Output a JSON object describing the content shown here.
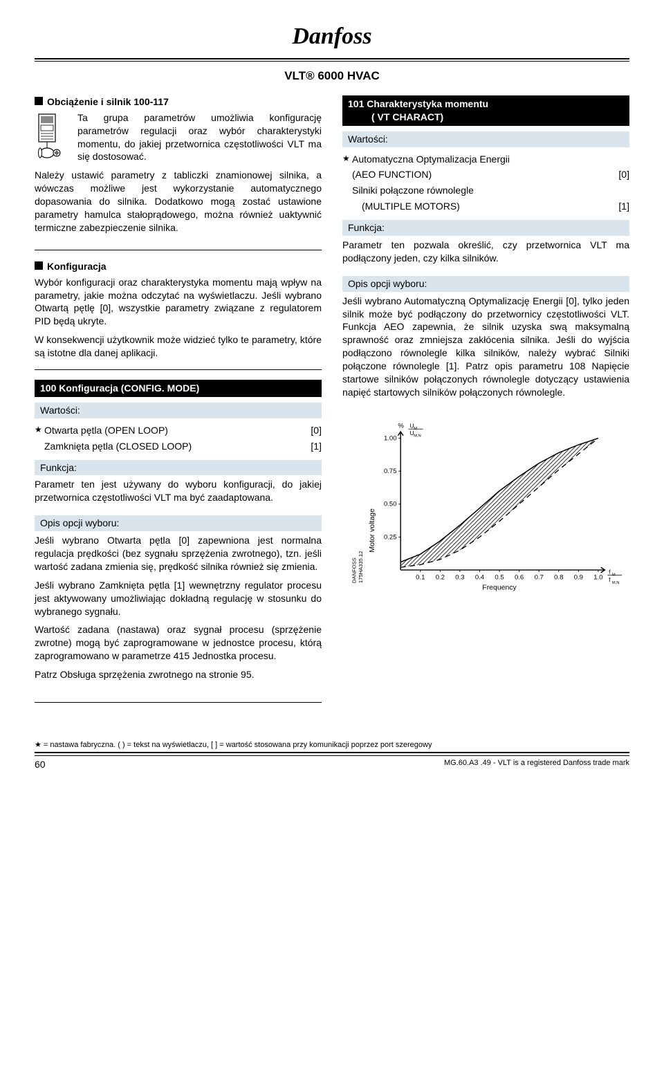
{
  "header": {
    "brand": "Danfoss",
    "product": "VLT® 6000 HVAC"
  },
  "left": {
    "sec1": {
      "title": "Obciążenie i silnik 100-117",
      "p1": "Ta grupa parametrów umożliwia konfigurację parametrów regulacji oraz wybór charakterystyki momentu, do jakiej przetwornica częstotliwości VLT ma się dostosować.",
      "p2": "Należy ustawić parametry z tabliczki znamionowej silnika, a wówczas możliwe jest wykorzystanie automatycznego dopasowania do silnika. Dodatkowo mogą zostać ustawione parametry hamulca stałoprądowego, można również uaktywnić termiczne zabezpieczenie silnika."
    },
    "sec2": {
      "title": "Konfiguracja",
      "p1": "Wybór konfiguracji oraz charakterystyka momentu mają wpływ na parametry, jakie można odczytać na wyświetlaczu. Jeśli wybrano Otwartą pętlę [0], wszystkie parametry związane z regulatorem PID będą ukryte.",
      "p2": "W konsekwencji użytkownik może widzieć tylko te parametry, które są istotne dla danej aplikacji."
    },
    "param100": {
      "header": "100  Konfiguracja (CONFIG. MODE)",
      "wartosci": "Wartości:",
      "opt0_label": "Otwarta pętla (OPEN LOOP)",
      "opt0_val": "[0]",
      "opt1_label": "Zamknięta pętla (CLOSED LOOP)",
      "opt1_val": "[1]",
      "funkcja_h": "Funkcja:",
      "funkcja_body": "Parametr ten jest używany do wyboru konfiguracji, do jakiej przetwornica częstotliwości VLT ma być zaadaptowana.",
      "opis_h": "Opis opcji wyboru:",
      "opis_p1": "Jeśli wybrano Otwarta pętla [0] zapewniona jest normalna regulacja prędkości (bez sygnału sprzężenia zwrotnego), tzn. jeśli wartość zadana zmienia się, prędkość silnika również się zmienia.",
      "opis_p2": "Jeśli wybrano Zamknięta pętla [1] wewnętrzny regulator procesu jest aktywowany umożliwiając dokładną regulację w stosunku do wybranego sygnału.",
      "opis_p3": "Wartość zadana (nastawa) oraz sygnał procesu (sprzężenie zwrotne) mogą być zaprogramowane w jednostce procesu, którą zaprogramowano w parametrze 415 Jednostka procesu.",
      "opis_p4": "Patrz Obsługa sprzężenia zwrotnego na stronie 95."
    }
  },
  "right": {
    "param101": {
      "header_line1": "101  Charakterystyka momentu",
      "header_line2": "( VT CHARACT)",
      "wartosci": "Wartości:",
      "opt0_l1": "Automatyczna Optymalizacja Energii",
      "opt0_l2": "(AEO FUNCTION)",
      "opt0_val": "[0]",
      "opt1_l1": "Silniki połączone równolegle",
      "opt1_l2": "(MULTIPLE MOTORS)",
      "opt1_val": "[1]",
      "funkcja_h": "Funkcja:",
      "funkcja_body": "Parametr ten pozwala określić, czy przetwornica VLT ma podłączony jeden, czy kilka silników.",
      "opis_h": "Opis opcji wyboru:",
      "opis_body": "Jeśli wybrano Automatyczną Optymalizację Energii [0], tylko jeden silnik może być podłączony do przetwornicy częstotliwości VLT. Funkcja AEO zapewnia, że silnik uzyska swą maksymalną sprawność oraz zmniejsza zakłócenia silnika. Jeśli do wyjścia podłączono równolegle kilka silników, należy wybrać Silniki połączone równolegle [1]. Patrz opis parametru 108 Napięcie startowe silników połączonych równolegle dotyczący ustawienia napięć startowych silników połączonych równolegle."
    },
    "chart": {
      "y_label": "Motor voltage",
      "y_top_label": "UM / UM,N",
      "x_label": "Frequency",
      "x_right_label": "fM / fM,N",
      "percent": "%",
      "y_ticks": [
        "1.00",
        "0.75",
        "0.50",
        "0.25"
      ],
      "x_ticks": [
        "0.1",
        "0.2",
        "0.3",
        "0.4",
        "0.5",
        "0.6",
        "0.7",
        "0.8",
        "0.9",
        "1.0"
      ],
      "side_label": "DANFOSS\n175HA335.12",
      "curve_upper": [
        [
          0,
          0.06
        ],
        [
          0.1,
          0.12
        ],
        [
          0.2,
          0.22
        ],
        [
          0.3,
          0.34
        ],
        [
          0.4,
          0.47
        ],
        [
          0.5,
          0.6
        ],
        [
          0.6,
          0.71
        ],
        [
          0.7,
          0.81
        ],
        [
          0.8,
          0.89
        ],
        [
          0.9,
          0.95
        ],
        [
          1.0,
          1.0
        ]
      ],
      "curve_lower": [
        [
          0,
          0.02
        ],
        [
          0.1,
          0.04
        ],
        [
          0.2,
          0.08
        ],
        [
          0.3,
          0.15
        ],
        [
          0.4,
          0.25
        ],
        [
          0.5,
          0.37
        ],
        [
          0.6,
          0.5
        ],
        [
          0.7,
          0.63
        ],
        [
          0.8,
          0.76
        ],
        [
          0.9,
          0.88
        ],
        [
          1.0,
          1.0
        ]
      ],
      "bg": "#ffffff",
      "axis_color": "#000000",
      "hatch_color": "#000000"
    }
  },
  "footer": {
    "note": "★ = nastawa fabryczna. ( ) = tekst na wyświetlaczu, [ ] = wartość stosowana przy komunikacji poprzez port szeregowy",
    "page": "60",
    "right": "MG.60.A3 .49 - VLT is a registered Danfoss trade mark"
  }
}
